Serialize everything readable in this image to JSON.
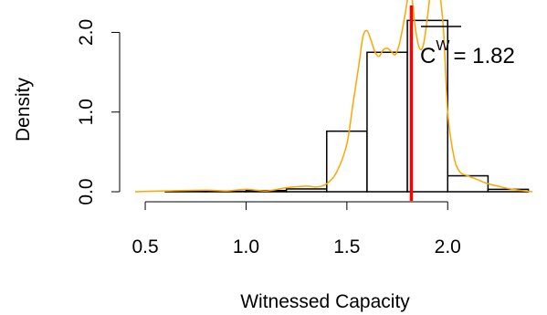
{
  "chart_data": {
    "type": "bar",
    "subtype": "histogram-with-density",
    "xlabel": "Witnessed Capacity",
    "ylabel": "Density",
    "xlim": [
      0.45,
      2.42
    ],
    "ylim": [
      0.0,
      2.2
    ],
    "xticks": [
      "0.5",
      "1.0",
      "1.5",
      "2.0"
    ],
    "yticks": [
      "0.0",
      "1.0",
      "2.0"
    ],
    "grid": false,
    "bins": [
      {
        "x0": 0.6,
        "x1": 0.8,
        "density": 0.005
      },
      {
        "x0": 0.8,
        "x1": 1.0,
        "density": 0.005
      },
      {
        "x0": 1.0,
        "x1": 1.2,
        "density": 0.015
      },
      {
        "x0": 1.2,
        "x1": 1.4,
        "density": 0.035
      },
      {
        "x0": 1.4,
        "x1": 1.6,
        "density": 0.76
      },
      {
        "x0": 1.6,
        "x1": 1.8,
        "density": 1.75
      },
      {
        "x0": 1.8,
        "x1": 2.0,
        "density": 2.15
      },
      {
        "x0": 2.0,
        "x1": 2.2,
        "density": 0.2
      },
      {
        "x0": 2.2,
        "x1": 2.4,
        "density": 0.03
      }
    ],
    "density_curve": {
      "color": "#FFA500",
      "x": [
        0.45,
        0.6,
        0.8,
        0.9,
        1.0,
        1.1,
        1.2,
        1.3,
        1.35,
        1.4,
        1.45,
        1.5,
        1.53,
        1.56,
        1.58,
        1.6,
        1.62,
        1.64,
        1.66,
        1.68,
        1.7,
        1.72,
        1.74,
        1.76,
        1.78,
        1.8,
        1.81,
        1.82,
        1.84,
        1.86,
        1.88,
        1.9,
        1.92,
        1.94,
        1.96,
        1.98,
        2.0,
        2.03,
        2.06,
        2.1,
        2.15,
        2.2,
        2.25,
        2.3,
        2.35,
        2.42
      ],
      "y": [
        0.0,
        0.01,
        0.02,
        0.01,
        0.03,
        0.01,
        0.05,
        0.07,
        0.06,
        0.1,
        0.25,
        0.6,
        1.1,
        1.6,
        1.95,
        2.02,
        1.9,
        1.75,
        1.7,
        1.78,
        1.8,
        1.76,
        1.72,
        1.85,
        2.1,
        2.4,
        2.6,
        2.5,
        2.05,
        1.8,
        1.85,
        2.2,
        2.6,
        2.7,
        2.5,
        2.0,
        1.0,
        0.45,
        0.25,
        0.2,
        0.15,
        0.1,
        0.07,
        0.04,
        0.02,
        0.0
      ]
    },
    "vline": {
      "x": 1.82,
      "color": "#FF0000"
    },
    "annotation": {
      "base": "C",
      "superscript": "W",
      "value_text": "= 1.82"
    }
  }
}
